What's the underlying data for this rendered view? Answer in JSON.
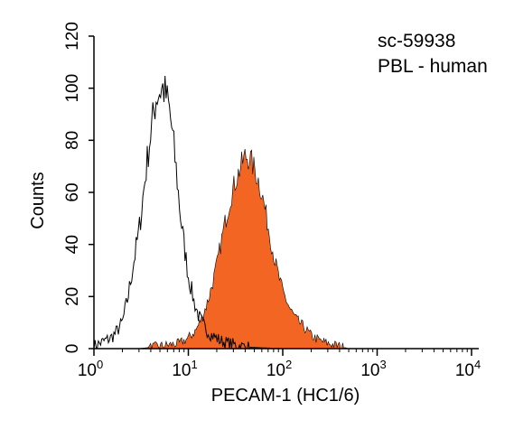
{
  "chart_data": {
    "type": "area",
    "xlabel": "PECAM-1 (HC1/6)",
    "ylabel": "Counts",
    "xscale": "log",
    "xlim": [
      1,
      10000
    ],
    "ylim": [
      0,
      120
    ],
    "grid": false,
    "legend": "none",
    "annotations": [
      "sc-59938",
      "PBL - human"
    ],
    "x_ticks": [
      {
        "value": 1,
        "base": "10",
        "exp": "0"
      },
      {
        "value": 10,
        "base": "10",
        "exp": "1"
      },
      {
        "value": 100,
        "base": "10",
        "exp": "2"
      },
      {
        "value": 1000,
        "base": "10",
        "exp": "3"
      },
      {
        "value": 10000,
        "base": "10",
        "exp": "4"
      }
    ],
    "y_ticks": [
      "0",
      "20",
      "40",
      "60",
      "80",
      "100",
      "120"
    ],
    "series": [
      {
        "style": "outline",
        "color": "#000000",
        "x": [
          1.0,
          1.15,
          1.3,
          1.5,
          1.7,
          2.0,
          2.3,
          2.6,
          3.0,
          3.4,
          3.8,
          4.2,
          4.6,
          5.0,
          5.4,
          5.8,
          6.2,
          6.6,
          7.0,
          7.6,
          8.2,
          9.0,
          10.0,
          11.5,
          13.0,
          15.0,
          18.0,
          22.0,
          27.0,
          35.0,
          45.0,
          60.0,
          100.0,
          10000.0
        ],
        "values": [
          1,
          2,
          3,
          4,
          6,
          10,
          20,
          32,
          45,
          62,
          77,
          88,
          97,
          99,
          100,
          97,
          93,
          86,
          78,
          65,
          52,
          40,
          28,
          18,
          12,
          8,
          5,
          3,
          2,
          1,
          0.5,
          0.3,
          0,
          0
        ]
      },
      {
        "style": "filled",
        "color": "#f26522",
        "x": [
          1.0,
          3.0,
          5.0,
          8.0,
          10.0,
          12.0,
          14.0,
          16.0,
          18.0,
          20.0,
          22.0,
          25.0,
          28.0,
          32.0,
          36.0,
          40.0,
          45.0,
          50.0,
          56.0,
          63.0,
          70.0,
          80.0,
          90.0,
          100.0,
          120.0,
          140.0,
          170.0,
          200.0,
          250.0,
          300.0,
          400.0,
          500.0,
          10000.0
        ],
        "values": [
          0,
          0,
          1,
          2,
          4,
          7,
          12,
          18,
          25,
          32,
          40,
          50,
          58,
          65,
          70,
          74,
          73,
          69,
          64,
          56,
          47,
          36,
          28,
          22,
          15,
          11,
          8,
          5,
          3,
          2,
          1,
          0,
          0
        ]
      }
    ]
  }
}
